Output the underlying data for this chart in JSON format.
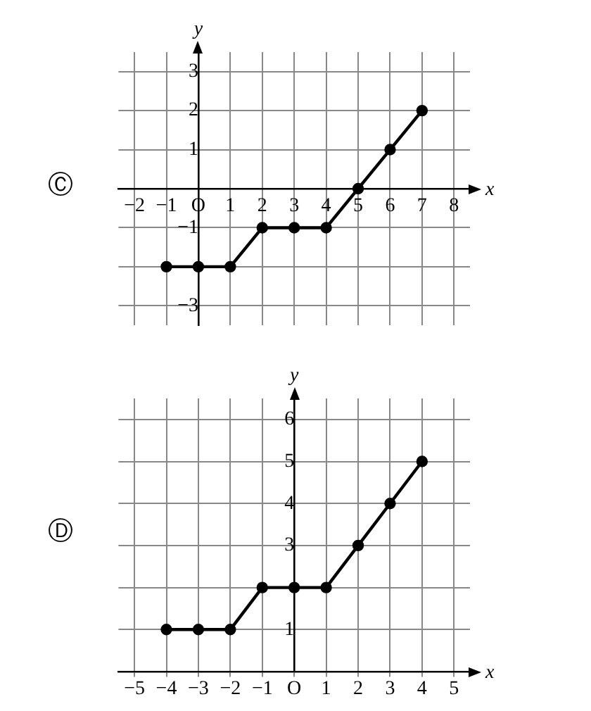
{
  "chart_data": [
    {
      "type": "line",
      "title": "Ⓒ",
      "xlabel": "x",
      "ylabel": "y",
      "series": [
        {
          "color": "#000000",
          "x": [
            -1,
            0,
            1,
            2,
            3,
            4,
            5,
            6,
            7
          ],
          "values": [
            -2,
            -2,
            -2,
            -1,
            -1,
            -1,
            0,
            1,
            2
          ]
        }
      ],
      "xlim": [
        -2.5,
        8.5
      ],
      "ylim": [
        -3.5,
        3.5
      ],
      "xticks": [
        -2,
        -1,
        {
          "value": 0,
          "label": "O"
        },
        1,
        2,
        3,
        4,
        5,
        6,
        7,
        8
      ],
      "yticks": [
        -3,
        {
          "value": -2,
          "label": null
        },
        -1,
        {
          "value": 0,
          "label": null
        },
        1,
        2,
        3
      ],
      "grid": true,
      "legend": false,
      "marker": "circle",
      "line_style": "solid"
    },
    {
      "type": "line",
      "title": "Ⓓ",
      "xlabel": "x",
      "ylabel": "y",
      "series": [
        {
          "color": "#000000",
          "x": [
            -4,
            -3,
            -2,
            -1,
            0,
            1,
            2,
            3,
            4
          ],
          "values": [
            1,
            1,
            1,
            2,
            2,
            2,
            3,
            4,
            5
          ]
        }
      ],
      "xlim": [
        -5.5,
        5.5
      ],
      "ylim": [
        0,
        6.5
      ],
      "xticks": [
        -5,
        -4,
        -3,
        -2,
        -1,
        {
          "value": 0,
          "label": "O"
        },
        1,
        2,
        3,
        4,
        5
      ],
      "yticks": [
        {
          "value": 0,
          "label": null
        },
        1,
        {
          "value": 2,
          "label": null
        },
        3,
        4,
        5,
        6
      ],
      "grid": true,
      "legend": false,
      "marker": "circle",
      "line_style": "solid"
    }
  ]
}
